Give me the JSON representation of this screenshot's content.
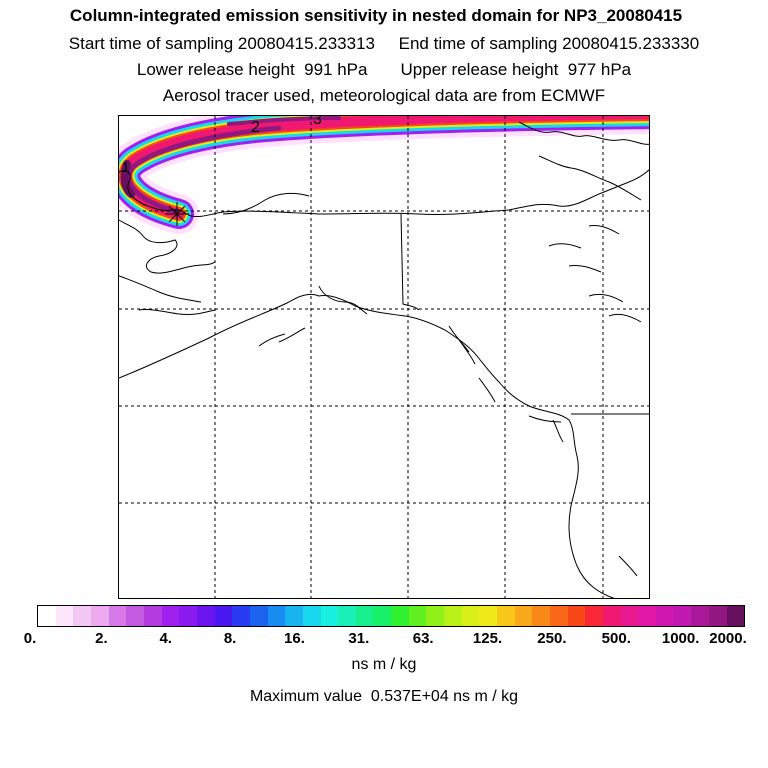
{
  "header": {
    "title": "Column-integrated emission sensitivity in nested domain for NP3_20080415",
    "sampling_start": "Start time of sampling 20080415.233313",
    "sampling_end": "End time of sampling 20080415.233330",
    "release_lower": "Lower release height  991 hPa",
    "release_upper": "Upper release height  977 hPa",
    "tracer_info": "Aerosol tracer used, meteorological data are from ECMWF"
  },
  "map": {
    "contour_labels": [
      "2",
      "3",
      "1"
    ],
    "release_marker": "release-point"
  },
  "colorbar": {
    "tick_labels": [
      "0.",
      "2.",
      "4.",
      "8.",
      "16.",
      "31.",
      "63.",
      "125.",
      "250.",
      "500.",
      "1000.",
      "2000."
    ],
    "colors": [
      "#ffffff",
      "#fbe6fb",
      "#f4c8f4",
      "#eeaaf0",
      "#d779e8",
      "#c45ae0",
      "#b23ce0",
      "#a020f0",
      "#8a1aee",
      "#6a14f0",
      "#4a18f0",
      "#2a3cf0",
      "#1a64f0",
      "#188cf0",
      "#18b4f0",
      "#18d8f0",
      "#18f0e0",
      "#18f0b8",
      "#18f090",
      "#18f068",
      "#30f030",
      "#60f020",
      "#90f018",
      "#b8f018",
      "#d8f018",
      "#f0e818",
      "#f8c818",
      "#f8a818",
      "#f88818",
      "#f86818",
      "#f84818",
      "#f82838",
      "#f01870",
      "#e81890",
      "#e018a8",
      "#d018b0",
      "#c018b0",
      "#a81898",
      "#901880",
      "#681060"
    ],
    "units": "ns m / kg",
    "max_value": "Maximum value  0.537E+04 ns m / kg"
  }
}
